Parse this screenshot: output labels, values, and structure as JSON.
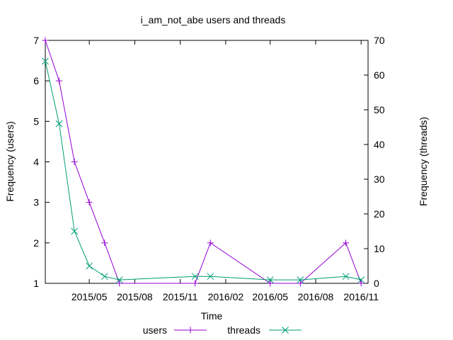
{
  "chart_data": {
    "type": "line",
    "title": "i_am_not_abe users and threads",
    "xlabel": "Time",
    "ylabel_left": "Frequency (users)",
    "ylabel_right": "Frequency (threads)",
    "x_range": [
      "2015-02-01",
      "2016-11-15"
    ],
    "x_ticks": [
      {
        "date": "2015-05-01",
        "label": "2015/05"
      },
      {
        "date": "2015-08-01",
        "label": "2015/08"
      },
      {
        "date": "2015-11-01",
        "label": "2015/11"
      },
      {
        "date": "2016-02-01",
        "label": "2016/02"
      },
      {
        "date": "2016-05-01",
        "label": "2016/05"
      },
      {
        "date": "2016-08-01",
        "label": "2016/08"
      },
      {
        "date": "2016-11-01",
        "label": "2016/11"
      }
    ],
    "y_left": {
      "min": 1,
      "max": 7,
      "ticks": [
        1,
        2,
        3,
        4,
        5,
        6,
        7
      ]
    },
    "y_right": {
      "min": 0,
      "max": 70,
      "ticks": [
        0,
        10,
        20,
        30,
        40,
        50,
        60,
        70
      ]
    },
    "legend_position": "bottom",
    "series": [
      {
        "name": "users",
        "axis": "left",
        "color": "#9400d3",
        "marker": "plus",
        "points": [
          {
            "x": "2015-02-01",
            "y": 7
          },
          {
            "x": "2015-03-01",
            "y": 6
          },
          {
            "x": "2015-04-01",
            "y": 4
          },
          {
            "x": "2015-05-01",
            "y": 3
          },
          {
            "x": "2015-06-01",
            "y": 2
          },
          {
            "x": "2015-07-01",
            "y": 1
          },
          {
            "x": "2015-12-01",
            "y": 1
          },
          {
            "x": "2016-01-01",
            "y": 2
          },
          {
            "x": "2016-05-01",
            "y": 1
          },
          {
            "x": "2016-07-01",
            "y": 1
          },
          {
            "x": "2016-10-01",
            "y": 2
          },
          {
            "x": "2016-11-01",
            "y": 1
          }
        ]
      },
      {
        "name": "threads",
        "axis": "right",
        "color": "#009e73",
        "marker": "cross",
        "points": [
          {
            "x": "2015-02-01",
            "y": 64
          },
          {
            "x": "2015-03-01",
            "y": 46
          },
          {
            "x": "2015-04-01",
            "y": 15
          },
          {
            "x": "2015-05-01",
            "y": 5
          },
          {
            "x": "2015-06-01",
            "y": 2
          },
          {
            "x": "2015-07-01",
            "y": 1
          },
          {
            "x": "2015-12-01",
            "y": 2
          },
          {
            "x": "2016-01-01",
            "y": 2
          },
          {
            "x": "2016-05-01",
            "y": 1
          },
          {
            "x": "2016-07-01",
            "y": 1
          },
          {
            "x": "2016-10-01",
            "y": 2
          },
          {
            "x": "2016-11-01",
            "y": 1
          }
        ]
      }
    ]
  }
}
